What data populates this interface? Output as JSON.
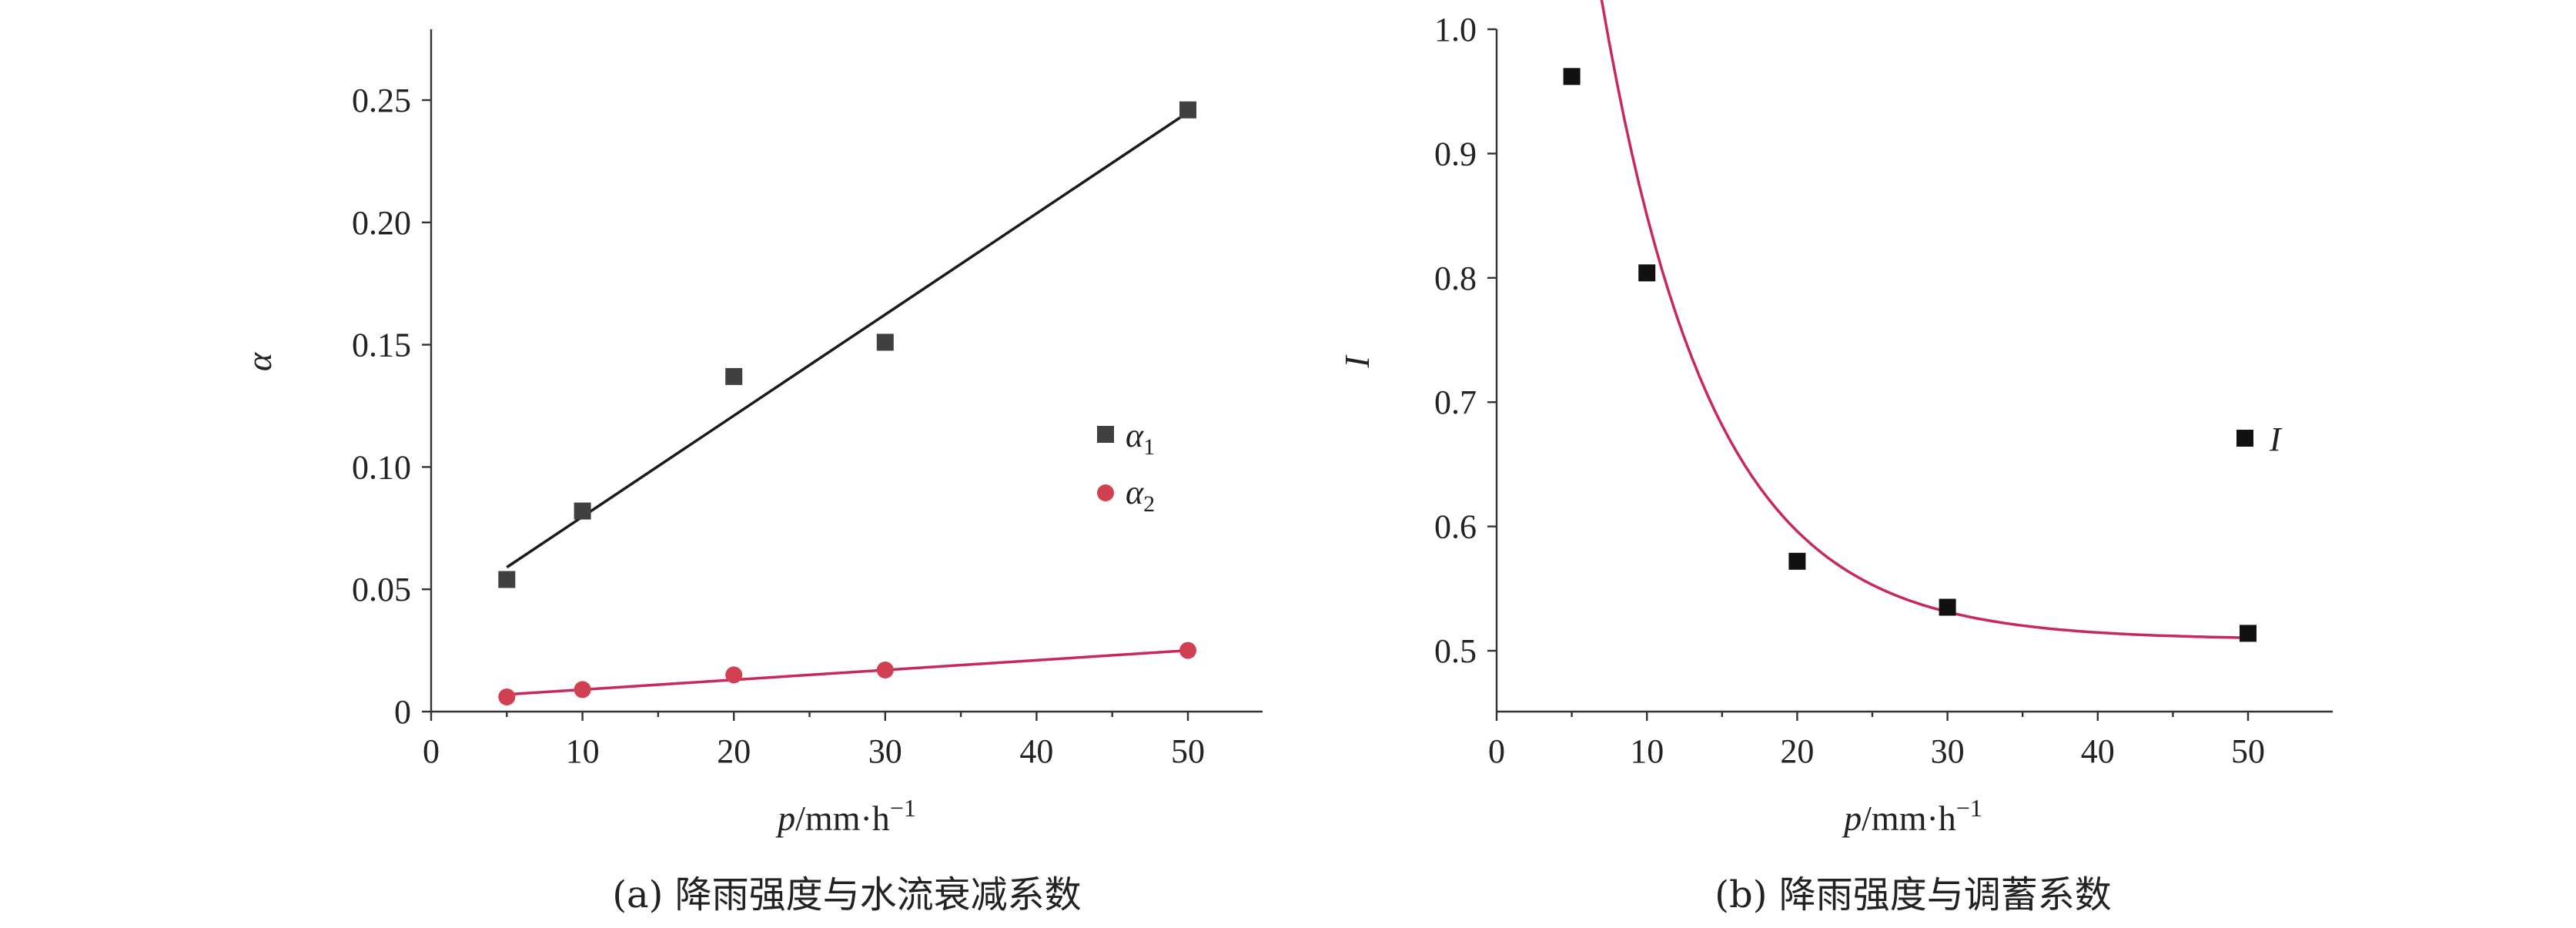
{
  "chart_data": [
    {
      "type": "scatter",
      "caption": "(a) 降雨强度与水流衰减系数",
      "xlabel_var": "p",
      "xlabel_unit": "/mm·h",
      "xlabel_exp": "−1",
      "ylabel": "α",
      "xlim": [
        0,
        55
      ],
      "ylim": [
        0,
        0.275
      ],
      "x_ticks": [
        0,
        10,
        20,
        30,
        40,
        50
      ],
      "y_ticks": [
        0,
        0.05,
        0.1,
        0.15,
        0.2,
        0.25
      ],
      "y_tick_labels": [
        "0",
        "0.05",
        "0.10",
        "0.15",
        "0.20",
        "0.25"
      ],
      "legend_position": "right",
      "series": [
        {
          "name": "α",
          "name_sub": "1",
          "marker": "square",
          "color": "#404040",
          "fit_color": "#1a1a1a",
          "x": [
            5,
            10,
            20,
            30,
            50
          ],
          "y": [
            0.054,
            0.082,
            0.137,
            0.151,
            0.246
          ],
          "fit": {
            "type": "linear",
            "x": [
              5,
              50
            ],
            "y": [
              0.059,
              0.245
            ]
          }
        },
        {
          "name": "α",
          "name_sub": "2",
          "marker": "circle",
          "color": "#d04050",
          "fit_color": "#c8285a",
          "x": [
            5,
            10,
            20,
            30,
            50
          ],
          "y": [
            0.006,
            0.009,
            0.015,
            0.017,
            0.025
          ],
          "fit": {
            "type": "linear",
            "x": [
              5,
              50
            ],
            "y": [
              0.007,
              0.025
            ]
          }
        }
      ]
    },
    {
      "type": "scatter",
      "caption": "(b) 降雨强度与调蓄系数",
      "xlabel_var": "p",
      "xlabel_unit": "/mm·h",
      "xlabel_exp": "−1",
      "ylabel": "I",
      "xlim": [
        0,
        55
      ],
      "ylim": [
        0.45,
        1.0
      ],
      "x_ticks": [
        0,
        10,
        20,
        30,
        40,
        50
      ],
      "y_ticks": [
        0.5,
        0.6,
        0.7,
        0.8,
        0.9,
        1.0
      ],
      "y_tick_labels": [
        "0.5",
        "0.6",
        "0.7",
        "0.8",
        "0.9",
        "1.0"
      ],
      "legend_position": "right",
      "series": [
        {
          "name": "I",
          "marker": "square",
          "color": "#111111",
          "fit_color": "#c8285a",
          "x": [
            5,
            10,
            20,
            30,
            50
          ],
          "y": [
            0.962,
            0.804,
            0.572,
            0.535,
            0.514
          ],
          "fit": {
            "type": "exponential",
            "a": 0.675,
            "b": 0.1365,
            "c": 0.509
          }
        }
      ]
    }
  ]
}
